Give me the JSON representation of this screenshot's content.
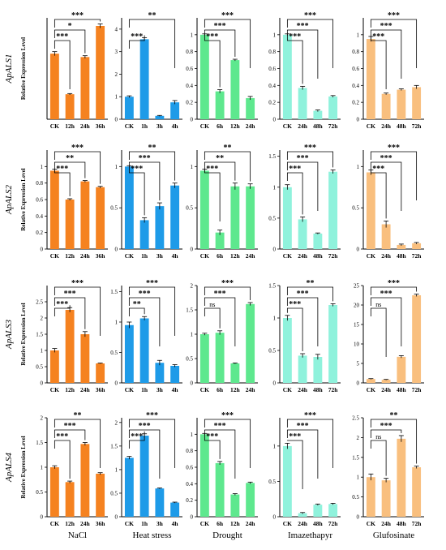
{
  "figure": {
    "ylabel": "Relative Expression Level",
    "genes": [
      "ApALS1",
      "ApALS2",
      "ApALS3",
      "ApALS4"
    ],
    "treatments": [
      "NaCl",
      "Heat stress",
      "Drought",
      "Imazethapyr",
      "Glufosinate"
    ]
  },
  "chart_data": [
    {
      "type": "bar",
      "gene": "ApALS1",
      "treatment": "NaCl",
      "color": "#F58220",
      "categories": [
        "CK",
        "12h",
        "24h",
        "36h"
      ],
      "values": [
        0.97,
        0.37,
        0.92,
        1.38
      ],
      "errors": [
        0.03,
        0.01,
        0.02,
        0.03
      ],
      "ylim": [
        0,
        1.5
      ],
      "yticks": [],
      "significance": [
        "***",
        "*",
        "***"
      ]
    },
    {
      "type": "bar",
      "gene": "ApALS1",
      "treatment": "Heat stress",
      "color": "#1E9BE8",
      "categories": [
        "CK",
        "1h",
        "3h",
        "4h"
      ],
      "values": [
        1.0,
        3.55,
        0.15,
        0.75
      ],
      "errors": [
        0.04,
        0.07,
        0.02,
        0.08
      ],
      "ylim": [
        0,
        4.5
      ],
      "yticks": [
        0,
        1,
        2,
        3,
        4
      ],
      "significance": [
        "***",
        "",
        "**"
      ]
    },
    {
      "type": "bar",
      "gene": "ApALS1",
      "treatment": "Drought",
      "color": "#5EE88E",
      "categories": [
        "CK",
        "6h",
        "12h",
        "24h"
      ],
      "values": [
        1.0,
        0.33,
        0.7,
        0.25
      ],
      "errors": [
        0.01,
        0.02,
        0.01,
        0.02
      ],
      "ylim": [
        0,
        1.2
      ],
      "yticks": [
        0,
        0.2,
        0.4,
        0.6,
        0.8,
        1.0
      ],
      "significance": [
        "***",
        "***",
        "***"
      ]
    },
    {
      "type": "bar",
      "gene": "ApALS1",
      "treatment": "Imazethapyr",
      "color": "#8FF2DC",
      "categories": [
        "CK",
        "24h",
        "48h",
        "72h"
      ],
      "values": [
        1.0,
        0.37,
        0.1,
        0.27
      ],
      "errors": [
        0.01,
        0.02,
        0.01,
        0.01
      ],
      "ylim": [
        0,
        1.2
      ],
      "yticks": [
        0,
        0.2,
        0.4,
        0.6,
        0.8,
        1.0
      ],
      "significance": [
        "***",
        "***",
        "***"
      ]
    },
    {
      "type": "bar",
      "gene": "ApALS1",
      "treatment": "Glufosinate",
      "color": "#F9BF7E",
      "categories": [
        "CK",
        "24h",
        "48h",
        "72h"
      ],
      "values": [
        0.95,
        0.3,
        0.35,
        0.38
      ],
      "errors": [
        0.03,
        0.01,
        0.01,
        0.02
      ],
      "ylim": [
        0,
        1.2
      ],
      "yticks": [
        0,
        0.2,
        0.4,
        0.6,
        0.8,
        1.0
      ],
      "significance": [
        "***",
        "***",
        "***"
      ]
    },
    {
      "type": "bar",
      "gene": "ApALS2",
      "treatment": "NaCl",
      "color": "#F58220",
      "categories": [
        "CK",
        "12h",
        "24h",
        "36h"
      ],
      "values": [
        0.95,
        0.6,
        0.82,
        0.75
      ],
      "errors": [
        0.02,
        0.01,
        0.01,
        0.01
      ],
      "ylim": [
        0,
        1.2
      ],
      "yticks": [
        0,
        0.2,
        0.4,
        0.6,
        0.8,
        1.0
      ],
      "significance": [
        "***",
        "**",
        "***"
      ]
    },
    {
      "type": "bar",
      "gene": "ApALS2",
      "treatment": "Heat stress",
      "color": "#1E9BE8",
      "categories": [
        "CK",
        "1h",
        "3h",
        "4h"
      ],
      "values": [
        1.0,
        0.35,
        0.52,
        0.77
      ],
      "errors": [
        0.01,
        0.03,
        0.04,
        0.03
      ],
      "ylim": [
        0,
        1.2
      ],
      "yticks": [
        0,
        0.5,
        1.0
      ],
      "significance": [
        "***",
        "***",
        "**"
      ]
    },
    {
      "type": "bar",
      "gene": "ApALS2",
      "treatment": "Drought",
      "color": "#5EE88E",
      "categories": [
        "CK",
        "6h",
        "12h",
        "24h"
      ],
      "values": [
        0.95,
        0.2,
        0.76,
        0.76
      ],
      "errors": [
        0.02,
        0.03,
        0.04,
        0.03
      ],
      "ylim": [
        0,
        1.2
      ],
      "yticks": [
        0,
        0.5,
        1.0
      ],
      "significance": [
        "***",
        "**",
        "**"
      ]
    },
    {
      "type": "bar",
      "gene": "ApALS2",
      "treatment": "Imazethapyr",
      "color": "#8FF2DC",
      "categories": [
        "CK",
        "24h",
        "48h",
        "72h"
      ],
      "values": [
        1.0,
        0.48,
        0.25,
        1.25
      ],
      "errors": [
        0.04,
        0.04,
        0.01,
        0.03
      ],
      "ylim": [
        0,
        1.6
      ],
      "yticks": [
        0,
        0.5,
        1.0,
        1.5
      ],
      "significance": [
        "***",
        "***",
        "***"
      ]
    },
    {
      "type": "bar",
      "gene": "ApALS2",
      "treatment": "Glufosinate",
      "color": "#F9BF7E",
      "categories": [
        "CK",
        "24h",
        "48h",
        "72h"
      ],
      "values": [
        0.93,
        0.3,
        0.05,
        0.07
      ],
      "errors": [
        0.03,
        0.04,
        0.01,
        0.01
      ],
      "ylim": [
        0,
        1.2
      ],
      "yticks": [
        0,
        0.5,
        1.0
      ],
      "significance": [
        "***",
        "***",
        "***"
      ]
    },
    {
      "type": "bar",
      "gene": "ApALS3",
      "treatment": "NaCl",
      "color": "#F58220",
      "categories": [
        "CK",
        "12h",
        "24h",
        "36h"
      ],
      "values": [
        1.0,
        2.25,
        1.5,
        0.6
      ],
      "errors": [
        0.06,
        0.07,
        0.08,
        0.01
      ],
      "ylim": [
        0,
        3.0
      ],
      "yticks": [
        0,
        0.5,
        1.0,
        1.5,
        2.0,
        2.5
      ],
      "significance": [
        "***",
        "***",
        "***"
      ]
    },
    {
      "type": "bar",
      "gene": "ApALS3",
      "treatment": "Heat stress",
      "color": "#1E9BE8",
      "categories": [
        "CK",
        "1h",
        "3h",
        "4h"
      ],
      "values": [
        0.95,
        1.06,
        0.33,
        0.28
      ],
      "errors": [
        0.05,
        0.03,
        0.04,
        0.02
      ],
      "ylim": [
        0,
        1.6
      ],
      "yticks": [
        0,
        0.5,
        1.0,
        1.5
      ],
      "significance": [
        "**",
        "***",
        "***"
      ]
    },
    {
      "type": "bar",
      "gene": "ApALS3",
      "treatment": "Drought",
      "color": "#5EE88E",
      "categories": [
        "CK",
        "6h",
        "12h",
        "24h"
      ],
      "values": [
        1.0,
        1.03,
        0.4,
        1.62
      ],
      "errors": [
        0.02,
        0.04,
        0.01,
        0.03
      ],
      "ylim": [
        0,
        2.0
      ],
      "yticks": [
        0,
        0.5,
        1.0,
        1.5,
        2.0
      ],
      "significance": [
        "ns",
        "***",
        "***"
      ]
    },
    {
      "type": "bar",
      "gene": "ApALS3",
      "treatment": "Imazethapyr",
      "color": "#8FF2DC",
      "categories": [
        "CK",
        "24h",
        "48h",
        "72h"
      ],
      "values": [
        1.0,
        0.42,
        0.4,
        1.2
      ],
      "errors": [
        0.04,
        0.03,
        0.04,
        0.02
      ],
      "ylim": [
        0,
        1.5
      ],
      "yticks": [
        0,
        0.5,
        1.0,
        1.5
      ],
      "significance": [
        "***",
        "***",
        "**"
      ]
    },
    {
      "type": "bar",
      "gene": "ApALS3",
      "treatment": "Glufosinate",
      "color": "#F9BF7E",
      "categories": [
        "CK",
        "24h",
        "48h",
        "72h"
      ],
      "values": [
        1.0,
        0.8,
        6.7,
        22.5
      ],
      "errors": [
        0.1,
        0.1,
        0.3,
        0.3
      ],
      "ylim": [
        0,
        25
      ],
      "yticks": [
        0,
        5,
        10,
        15,
        20,
        25
      ],
      "significance": [
        "ns",
        "***",
        "***"
      ]
    },
    {
      "type": "bar",
      "gene": "ApALS4",
      "treatment": "NaCl",
      "color": "#F58220",
      "categories": [
        "CK",
        "12h",
        "24h",
        "36h"
      ],
      "values": [
        1.0,
        0.7,
        1.47,
        0.87
      ],
      "errors": [
        0.03,
        0.02,
        0.03,
        0.02
      ],
      "ylim": [
        0,
        2.0
      ],
      "yticks": [
        0,
        0.5,
        1.0,
        1.5,
        2.0
      ],
      "significance": [
        "***",
        "***",
        "**"
      ]
    },
    {
      "type": "bar",
      "gene": "ApALS4",
      "treatment": "Heat stress",
      "color": "#1E9BE8",
      "categories": [
        "CK",
        "1h",
        "3h",
        "4h"
      ],
      "values": [
        1.25,
        1.72,
        0.6,
        0.3
      ],
      "errors": [
        0.03,
        0.04,
        0.01,
        0.01
      ],
      "ylim": [
        0,
        2.1
      ],
      "yticks": [
        0,
        0.5,
        1.0,
        1.5,
        2.0
      ],
      "significance": [
        "***",
        "***",
        "***"
      ]
    },
    {
      "type": "bar",
      "gene": "ApALS4",
      "treatment": "Drought",
      "color": "#5EE88E",
      "categories": [
        "CK",
        "6h",
        "12h",
        "24h"
      ],
      "values": [
        1.0,
        0.65,
        0.27,
        0.41
      ],
      "errors": [
        0.01,
        0.02,
        0.01,
        0.01
      ],
      "ylim": [
        0,
        1.2
      ],
      "yticks": [
        0,
        0.2,
        0.4,
        0.6,
        0.8,
        1.0
      ],
      "significance": [
        "***",
        "***",
        "***"
      ]
    },
    {
      "type": "bar",
      "gene": "ApALS4",
      "treatment": "Imazethapyr",
      "color": "#8FF2DC",
      "categories": [
        "CK",
        "24h",
        "48h",
        "72h"
      ],
      "values": [
        1.0,
        0.05,
        0.17,
        0.18
      ],
      "errors": [
        0.04,
        0.01,
        0.01,
        0.01
      ],
      "ylim": [
        0,
        1.4
      ],
      "yticks": [
        0,
        0.5,
        1.0
      ],
      "significance": [
        "***",
        "***",
        "***"
      ]
    },
    {
      "type": "bar",
      "gene": "ApALS4",
      "treatment": "Glufosinate",
      "color": "#F9BF7E",
      "categories": [
        "CK",
        "24h",
        "48h",
        "72h"
      ],
      "values": [
        1.0,
        0.92,
        1.97,
        1.25
      ],
      "errors": [
        0.08,
        0.05,
        0.08,
        0.03
      ],
      "ylim": [
        0,
        2.5
      ],
      "yticks": [
        0,
        0.5,
        1.0,
        1.5,
        2.0,
        2.5
      ],
      "significance": [
        "ns",
        "***",
        "**"
      ]
    }
  ]
}
